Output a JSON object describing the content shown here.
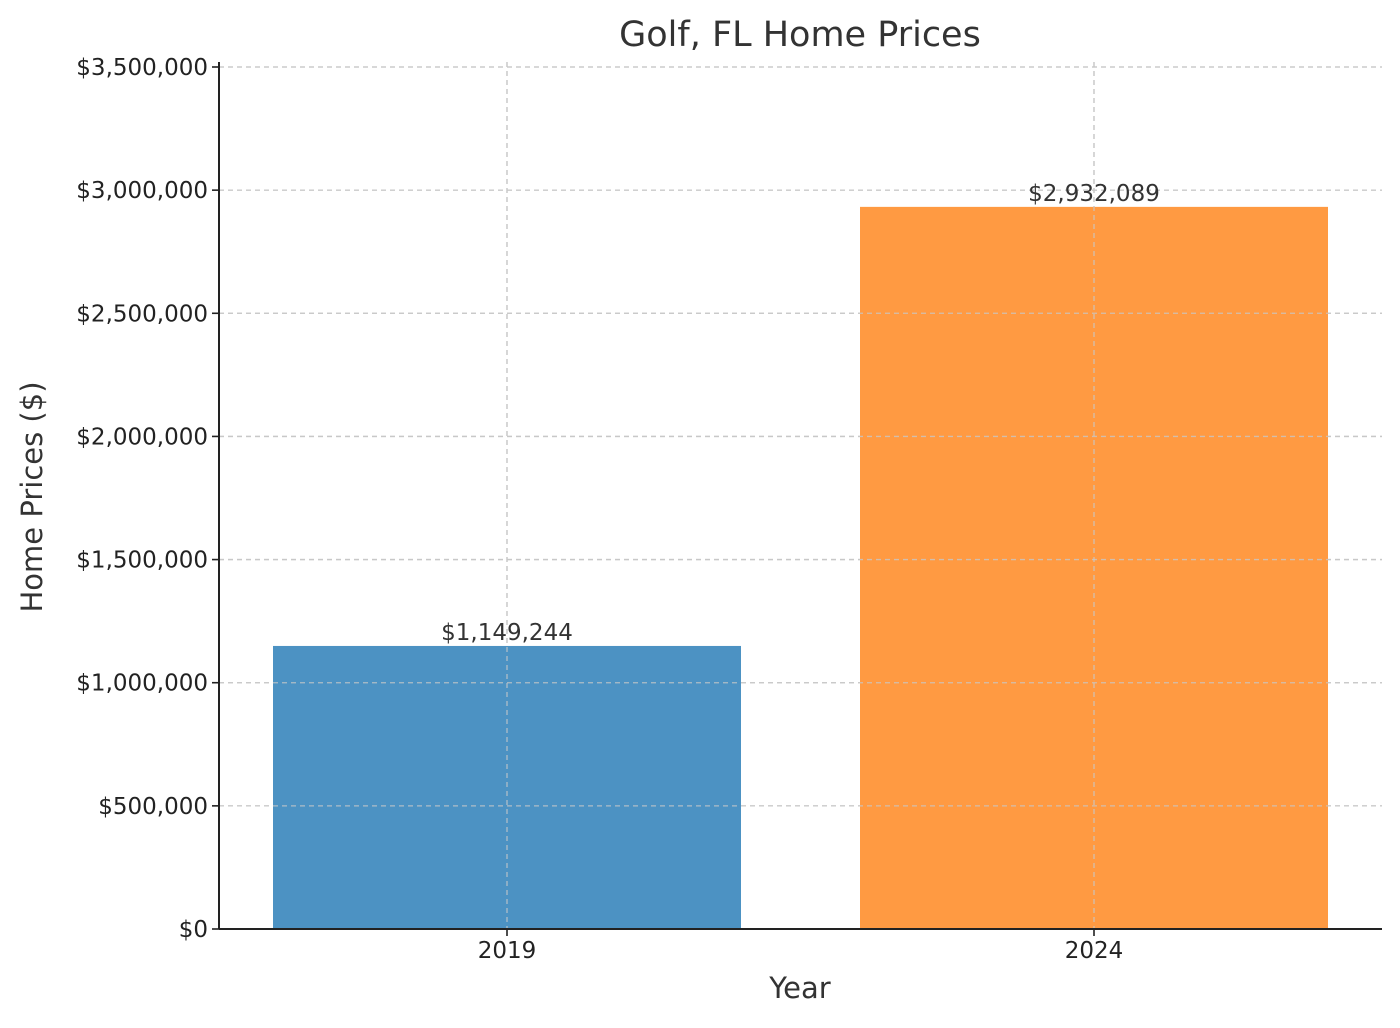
{
  "chart_data": {
    "type": "bar",
    "title": "Golf, FL Home Prices",
    "xlabel": "Year",
    "ylabel": "Home Prices ($)",
    "categories": [
      "2019",
      "2024"
    ],
    "values": [
      1149244,
      2932089
    ],
    "value_labels": [
      "$1,149,244",
      "$2,932,089"
    ],
    "colors": [
      "#4c92c3",
      "#ff9a42"
    ],
    "ylim": [
      0,
      3500000
    ],
    "yticks": [
      0,
      500000,
      1000000,
      1500000,
      2000000,
      2500000,
      3000000,
      3500000
    ],
    "ytick_labels": [
      "$0",
      "$500,000",
      "$1,000,000",
      "$1,500,000",
      "$2,000,000",
      "$2,500,000",
      "$3,000,000",
      "$3,500,000"
    ],
    "grid": true,
    "legend": "none"
  }
}
